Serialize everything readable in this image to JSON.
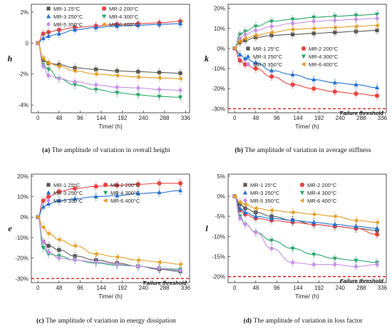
{
  "colors": {
    "MR-1": "#555555",
    "MR-2": "#e8423f",
    "MR-3": "#1f6fd1",
    "MR-4": "#22a566",
    "MR-5": "#c58ee8",
    "MR-6": "#e69a1c",
    "threshold": "#e00000"
  },
  "chart_data": [
    {
      "type": "line",
      "panel": "a",
      "caption_letter": "(a)",
      "caption_text": "The amplitude of variation in overall height",
      "xlabel": "Time/ (h)",
      "ylabel": "h",
      "xlim": [
        -15,
        345
      ],
      "ylim": [
        -4.5,
        2.5
      ],
      "xticks": [
        0,
        48,
        96,
        144,
        192,
        240,
        288,
        336
      ],
      "yticks": [
        -4,
        -2,
        0,
        2
      ],
      "ytick_labels": [
        "-4%",
        "-2%",
        "0",
        "2%"
      ],
      "threshold": null,
      "threshold_label": "",
      "x": [
        0,
        12,
        24,
        48,
        84,
        132,
        180,
        228,
        276,
        324
      ],
      "series": [
        {
          "name": "MR-1  25°C",
          "marker": "square",
          "values": [
            0,
            -1.1,
            -1.3,
            -1.4,
            -1.6,
            -1.7,
            -1.8,
            -1.85,
            -1.9,
            -1.95
          ]
        },
        {
          "name": "MR-2  200°C",
          "marker": "circle",
          "values": [
            0,
            0.6,
            0.7,
            0.85,
            1.0,
            1.1,
            1.2,
            1.25,
            1.3,
            1.4
          ]
        },
        {
          "name": "MR-3  250°C",
          "marker": "triangle-up",
          "values": [
            0,
            0.3,
            0.45,
            0.6,
            0.85,
            1.0,
            1.1,
            1.15,
            1.2,
            1.25
          ]
        },
        {
          "name": "MR-4  300°C",
          "marker": "triangle-down",
          "values": [
            0,
            -1.4,
            -1.7,
            -2.3,
            -2.7,
            -3.0,
            -3.2,
            -3.35,
            -3.45,
            -3.5
          ]
        },
        {
          "name": "MR-5  350°C",
          "marker": "diamond",
          "values": [
            0,
            -1.5,
            -2.1,
            -2.3,
            -2.5,
            -2.7,
            -2.85,
            -2.9,
            -3.0,
            -3.05
          ]
        },
        {
          "name": "MR-6  400°C",
          "marker": "triangle-left",
          "values": [
            0,
            -1.0,
            -1.3,
            -1.5,
            -1.8,
            -2.0,
            -2.1,
            -2.2,
            -2.25,
            -2.3
          ]
        }
      ]
    },
    {
      "type": "line",
      "panel": "b",
      "caption_letter": "(b)",
      "caption_text": "The amplitude of variation in average stiffness",
      "xlabel": "Time/ (h)",
      "ylabel": "k",
      "xlim": [
        -15,
        345
      ],
      "ylim": [
        -32,
        22
      ],
      "xticks": [
        0,
        48,
        96,
        144,
        192,
        240,
        288,
        336
      ],
      "yticks": [
        -30,
        -20,
        -10,
        0,
        10,
        20
      ],
      "ytick_labels": [
        "-30%",
        "-20%",
        "-10%",
        "0%",
        "10%",
        "20%"
      ],
      "threshold": -30,
      "threshold_label": "Failure threshold",
      "x": [
        0,
        12,
        24,
        48,
        84,
        132,
        180,
        228,
        276,
        324
      ],
      "series": [
        {
          "name": "MR-1  25°C",
          "marker": "square",
          "values": [
            0,
            3.0,
            4.0,
            5.5,
            6.5,
            7.0,
            7.5,
            8.0,
            8.5,
            9.0
          ]
        },
        {
          "name": "MR-2  200°C",
          "marker": "circle",
          "values": [
            0,
            -6.0,
            -8.0,
            -10.0,
            -14.0,
            -18.0,
            -20.0,
            -21.5,
            -22.5,
            -23.5
          ]
        },
        {
          "name": "MR-3  250°C",
          "marker": "triangle-up",
          "values": [
            0,
            -3.0,
            -5.0,
            -7.0,
            -11.0,
            -13.0,
            -15.5,
            -17.0,
            -18.0,
            -19.5
          ]
        },
        {
          "name": "MR-4  300°C",
          "marker": "triangle-down",
          "values": [
            0,
            7.0,
            8.5,
            11.0,
            13.5,
            14.5,
            15.5,
            16.0,
            16.5,
            17.0
          ]
        },
        {
          "name": "MR-5  350°C",
          "marker": "diamond",
          "values": [
            0,
            5.0,
            7.0,
            9.0,
            11.0,
            12.5,
            13.5,
            14.0,
            14.5,
            15.0
          ]
        },
        {
          "name": "MR-6  400°C",
          "marker": "triangle-left",
          "values": [
            0,
            3.5,
            5.0,
            6.5,
            8.0,
            9.5,
            10.0,
            10.5,
            11.0,
            11.5
          ]
        }
      ]
    },
    {
      "type": "line",
      "panel": "c",
      "caption_letter": "(c)",
      "caption_text": "The amplitude of variation in energy dissipation",
      "xlabel": "Time/ (h)",
      "ylabel": "e",
      "xlim": [
        -15,
        345
      ],
      "ylim": [
        -32,
        21
      ],
      "xticks": [
        0,
        48,
        96,
        144,
        192,
        240,
        288,
        336
      ],
      "yticks": [
        -30,
        -20,
        -10,
        0,
        10,
        20
      ],
      "ytick_labels": [
        "-30%",
        "-20%",
        "-10%",
        "0%",
        "10%",
        "20%"
      ],
      "threshold": -30,
      "threshold_label": "Failure threshold",
      "x": [
        0,
        12,
        24,
        48,
        84,
        132,
        180,
        228,
        276,
        324
      ],
      "series": [
        {
          "name": "MR-1  25°C",
          "marker": "square",
          "values": [
            0,
            -12.0,
            -14.0,
            -16.0,
            -19.0,
            -21.0,
            -22.5,
            -24.0,
            -25.5,
            -26.5
          ]
        },
        {
          "name": "MR-2  200°C",
          "marker": "circle",
          "values": [
            0,
            8.0,
            10.0,
            12.5,
            14.0,
            15.0,
            15.5,
            16.0,
            16.5,
            16.5
          ]
        },
        {
          "name": "MR-3  250°C",
          "marker": "triangle-up",
          "values": [
            0,
            5.0,
            6.5,
            8.0,
            9.0,
            10.0,
            10.5,
            11.5,
            12.0,
            13.0
          ]
        },
        {
          "name": "MR-4  300°C",
          "marker": "triangle-down",
          "values": [
            0,
            -15.0,
            -18.0,
            -19.0,
            -21.0,
            -22.5,
            -23.5,
            -24.0,
            -25.0,
            -25.5
          ]
        },
        {
          "name": "MR-5  350°C",
          "marker": "diamond",
          "values": [
            0,
            -12.0,
            -17.0,
            -20.0,
            -21.0,
            -22.0,
            -23.0,
            -24.0,
            -25.0,
            -26.0
          ]
        },
        {
          "name": "MR-6  400°C",
          "marker": "triangle-left",
          "values": [
            0,
            -5.0,
            -8.0,
            -11.0,
            -14.0,
            -18.0,
            -19.5,
            -21.0,
            -22.0,
            -23.0
          ]
        }
      ]
    },
    {
      "type": "line",
      "panel": "d",
      "caption_letter": "(d)",
      "caption_text": "The amplitude of variation in loss factor",
      "xlabel": "Time/ (h)",
      "ylabel": "l",
      "xlim": [
        -15,
        345
      ],
      "ylim": [
        -21.5,
        5.5
      ],
      "xticks": [
        0,
        48,
        96,
        144,
        192,
        240,
        288,
        336
      ],
      "yticks": [
        -20,
        -15,
        -10,
        -5,
        0,
        5
      ],
      "ytick_labels": [
        "-20%",
        "-15%",
        "-10%",
        "-5%",
        "0%",
        "5%"
      ],
      "threshold": -20,
      "threshold_label": "Failure threshold",
      "x": [
        0,
        12,
        24,
        48,
        84,
        132,
        180,
        228,
        276,
        324
      ],
      "series": [
        {
          "name": "MR-1  25°C",
          "marker": "square",
          "values": [
            0,
            -2.0,
            -3.0,
            -4.0,
            -5.0,
            -6.0,
            -7.0,
            -7.5,
            -8.0,
            -8.5
          ]
        },
        {
          "name": "MR-2  200°C",
          "marker": "circle",
          "values": [
            0,
            -3.5,
            -4.5,
            -5.5,
            -6.0,
            -6.5,
            -7.0,
            -7.5,
            -8.0,
            -9.5
          ]
        },
        {
          "name": "MR-3  250°C",
          "marker": "triangle-up",
          "values": [
            0,
            -3.0,
            -4.0,
            -5.0,
            -5.5,
            -6.0,
            -6.5,
            -7.0,
            -7.5,
            -8.0
          ]
        },
        {
          "name": "MR-4  300°C",
          "marker": "triangle-down",
          "values": [
            0,
            -5.0,
            -7.0,
            -9.0,
            -11.0,
            -13.0,
            -14.5,
            -15.5,
            -16.0,
            -16.5
          ]
        },
        {
          "name": "MR-5  350°C",
          "marker": "diamond",
          "values": [
            0,
            -5.5,
            -7.0,
            -9.0,
            -13.0,
            -16.5,
            -17.0,
            -17.0,
            -17.5,
            -17.0
          ]
        },
        {
          "name": "MR-6  400°C",
          "marker": "triangle-left",
          "values": [
            0,
            -1.5,
            -2.0,
            -3.0,
            -3.5,
            -4.0,
            -4.5,
            -5.0,
            -6.0,
            -6.5
          ]
        }
      ]
    }
  ]
}
